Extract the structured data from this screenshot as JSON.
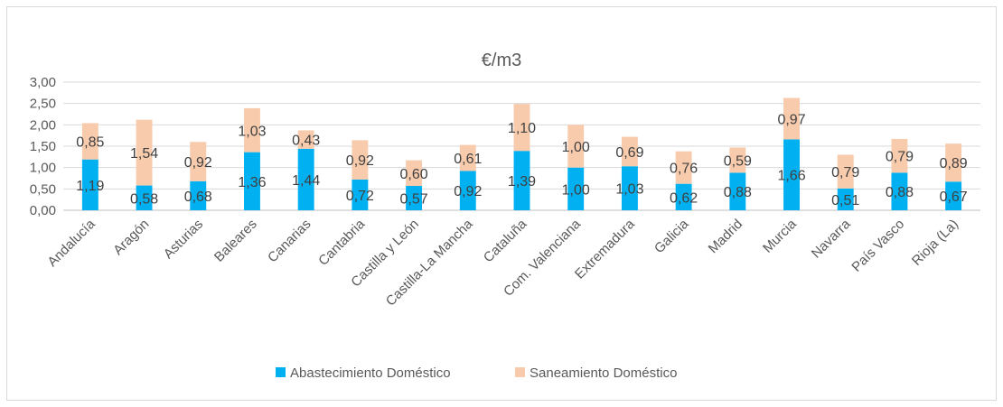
{
  "chart_data": {
    "type": "bar",
    "stacked": true,
    "title": "€/m3",
    "categories": [
      "Andalucía",
      "Aragón",
      "Asturias",
      "Baleares",
      "Canarias",
      "Cantabria",
      "Castilla y León",
      "Castilla-La Mancha",
      "Cataluña",
      "Com. Valenciana",
      "Extremadura",
      "Galicia",
      "Madrid",
      "Murcia",
      "Navarra",
      "País Vasco",
      "Rioja (La)"
    ],
    "series": [
      {
        "name": "Abastecimiento Doméstico",
        "color": "#00B0F0",
        "values": [
          1.19,
          0.58,
          0.68,
          1.36,
          1.44,
          0.72,
          0.57,
          0.92,
          1.39,
          1.0,
          1.03,
          0.62,
          0.88,
          1.66,
          0.51,
          0.88,
          0.67
        ],
        "labels": [
          "1,19",
          "0,58",
          "0,68",
          "1,36",
          "1,44",
          "0,72",
          "0,57",
          "0,92",
          "1,39",
          "1,00",
          "1,03",
          "0,62",
          "0,88",
          "1,66",
          "0,51",
          "0,88",
          "0,67"
        ]
      },
      {
        "name": "Saneamiento Doméstico",
        "color": "#F8CBAD",
        "values": [
          0.85,
          1.54,
          0.92,
          1.03,
          0.43,
          0.92,
          0.6,
          0.61,
          1.1,
          1.0,
          0.69,
          0.76,
          0.59,
          0.97,
          0.79,
          0.79,
          0.89
        ],
        "labels": [
          "0,85",
          "1,54",
          "0,92",
          "1,03",
          "0,43",
          "0,92",
          "0,60",
          "0,61",
          "1,10",
          "1,00",
          "0,69",
          "0,76",
          "0,59",
          "0,97",
          "0,79",
          "0,79",
          "0,89"
        ]
      }
    ],
    "ylim": [
      0,
      3
    ],
    "yticks": [
      0,
      0.5,
      1.0,
      1.5,
      2.0,
      2.5,
      3.0
    ],
    "ytick_labels": [
      "0,00",
      "0,50",
      "1,00",
      "1,50",
      "2,00",
      "2,50",
      "3,00"
    ],
    "grid": true,
    "legend": "bottom"
  }
}
